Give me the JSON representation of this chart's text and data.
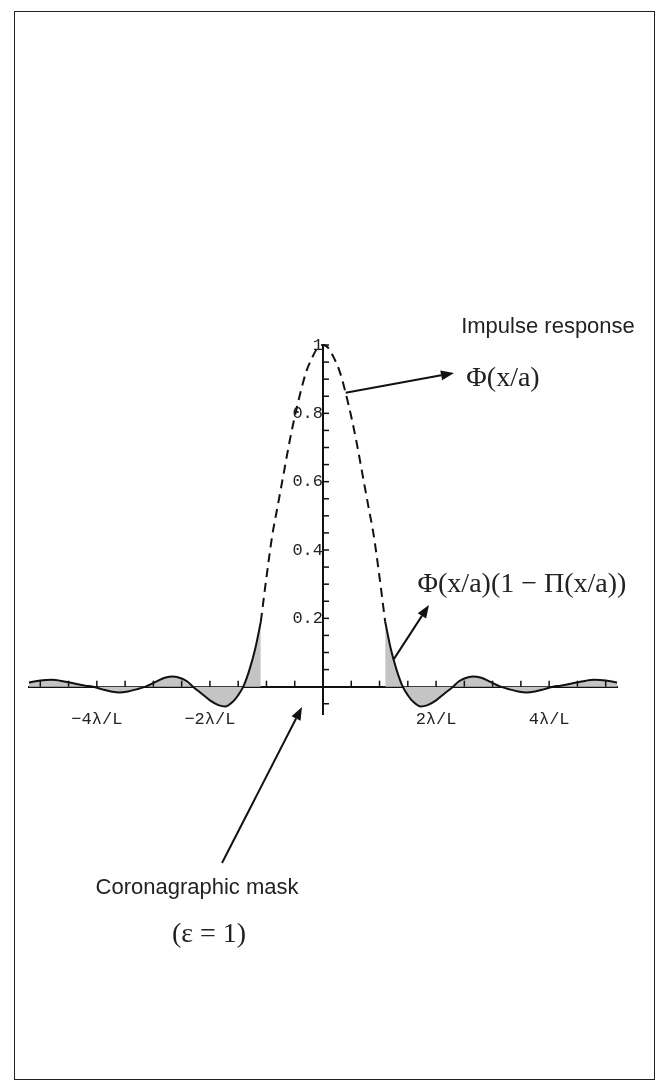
{
  "chart_data": {
    "type": "line",
    "series": [
      {
        "color": "#111111",
        "line_style": "dashed",
        "x": [
          -1.1,
          -1.0,
          -0.9,
          -0.8,
          -0.7,
          -0.6,
          -0.5,
          -0.4,
          -0.3,
          -0.2,
          -0.1,
          0,
          0.1,
          0.2,
          0.3,
          0.4,
          0.5,
          0.6,
          0.7,
          0.8,
          0.9,
          1.0,
          1.1
        ],
        "values": [
          0.19,
          0.32,
          0.44,
          0.53,
          0.62,
          0.71,
          0.79,
          0.86,
          0.92,
          0.96,
          0.99,
          1.0,
          0.99,
          0.96,
          0.92,
          0.86,
          0.79,
          0.71,
          0.62,
          0.53,
          0.44,
          0.32,
          0.19
        ]
      },
      {
        "type": "area",
        "color": "#c4c4c4",
        "x": [
          -5.2,
          -5.0,
          -4.8,
          -4.6,
          -4.4,
          -4.2,
          -4.07,
          -3.9,
          -3.75,
          -3.6,
          -3.45,
          -3.3,
          -3.14,
          -2.95,
          -2.8,
          -2.65,
          -2.5,
          -2.4,
          -2.3,
          -2.15,
          -2.0,
          -1.85,
          -1.73,
          -1.6,
          -1.5,
          -1.41,
          -1.3,
          -1.2,
          -1.1,
          0,
          1.1,
          1.2,
          1.3,
          1.41,
          1.5,
          1.6,
          1.73,
          1.85,
          2.0,
          2.15,
          2.3,
          2.4,
          2.5,
          2.65,
          2.8,
          2.95,
          3.14,
          3.3,
          3.45,
          3.6,
          3.75,
          3.9,
          4.07,
          4.2,
          4.4,
          4.6,
          4.8,
          5.0,
          5.2
        ],
        "values": [
          0.012,
          0.018,
          0.02,
          0.016,
          0.009,
          0.003,
          0,
          -0.008,
          -0.014,
          -0.017,
          -0.014,
          -0.008,
          0,
          0.015,
          0.026,
          0.03,
          0.024,
          0.015,
          0,
          -0.02,
          -0.04,
          -0.054,
          -0.058,
          -0.045,
          -0.025,
          0,
          0.05,
          0.11,
          0.19,
          null,
          0.19,
          0.11,
          0.05,
          0,
          -0.025,
          -0.045,
          -0.058,
          -0.054,
          -0.04,
          -0.02,
          0,
          0.015,
          0.024,
          0.03,
          0.026,
          0.015,
          0,
          -0.008,
          -0.014,
          -0.017,
          -0.014,
          -0.008,
          0,
          0.003,
          0.009,
          0.016,
          0.02,
          0.018,
          0.012
        ]
      }
    ],
    "xlim": [
      -5.2,
      5.2
    ],
    "xticks": [
      {
        "value": -5,
        "label": null
      },
      {
        "value": -4.5,
        "label": null
      },
      {
        "value": -4,
        "label": "−4λ/L"
      },
      {
        "value": -3.5,
        "label": null
      },
      {
        "value": -3,
        "label": null
      },
      {
        "value": -2.5,
        "label": null
      },
      {
        "value": -2,
        "label": "−2λ/L"
      },
      {
        "value": -1.5,
        "label": null
      },
      {
        "value": -1,
        "label": null
      },
      {
        "value": -0.5,
        "label": null
      },
      {
        "value": 0.5,
        "label": null
      },
      {
        "value": 1,
        "label": null
      },
      {
        "value": 1.5,
        "label": null
      },
      {
        "value": 2,
        "label": "2λ/L"
      },
      {
        "value": 2.5,
        "label": null
      },
      {
        "value": 3,
        "label": null
      },
      {
        "value": 3.5,
        "label": null
      },
      {
        "value": 4,
        "label": "4λ/L"
      },
      {
        "value": 4.5,
        "label": null
      },
      {
        "value": 5,
        "label": null
      }
    ],
    "ylim": [
      -0.08,
      1.0
    ],
    "yticks": [
      {
        "value": -0.05,
        "label": null
      },
      {
        "value": 0.05,
        "label": null
      },
      {
        "value": 0.1,
        "label": null
      },
      {
        "value": 0.15,
        "label": null
      },
      0.2,
      {
        "value": 0.25,
        "label": null
      },
      {
        "value": 0.3,
        "label": null
      },
      {
        "value": 0.35,
        "label": null
      },
      0.4,
      {
        "value": 0.45,
        "label": null
      },
      {
        "value": 0.5,
        "label": null
      },
      {
        "value": 0.55,
        "label": null
      },
      0.6,
      {
        "value": 0.65,
        "label": null
      },
      {
        "value": 0.7,
        "label": null
      },
      {
        "value": 0.75,
        "label": null
      },
      0.8,
      {
        "value": 0.85,
        "label": null
      },
      {
        "value": 0.9,
        "label": null
      },
      {
        "value": 0.95,
        "label": null
      },
      1
    ],
    "annotations": [
      "Impulse response",
      {
        "text": "Φ(x/a)",
        "x": 0.4,
        "y": 0.86
      },
      {
        "text": "Φ(x/a)(1 − Π(x/a))",
        "x": 1.25,
        "y": 0.08
      },
      "Coronagraphic mask",
      "(ε = 1)"
    ]
  }
}
